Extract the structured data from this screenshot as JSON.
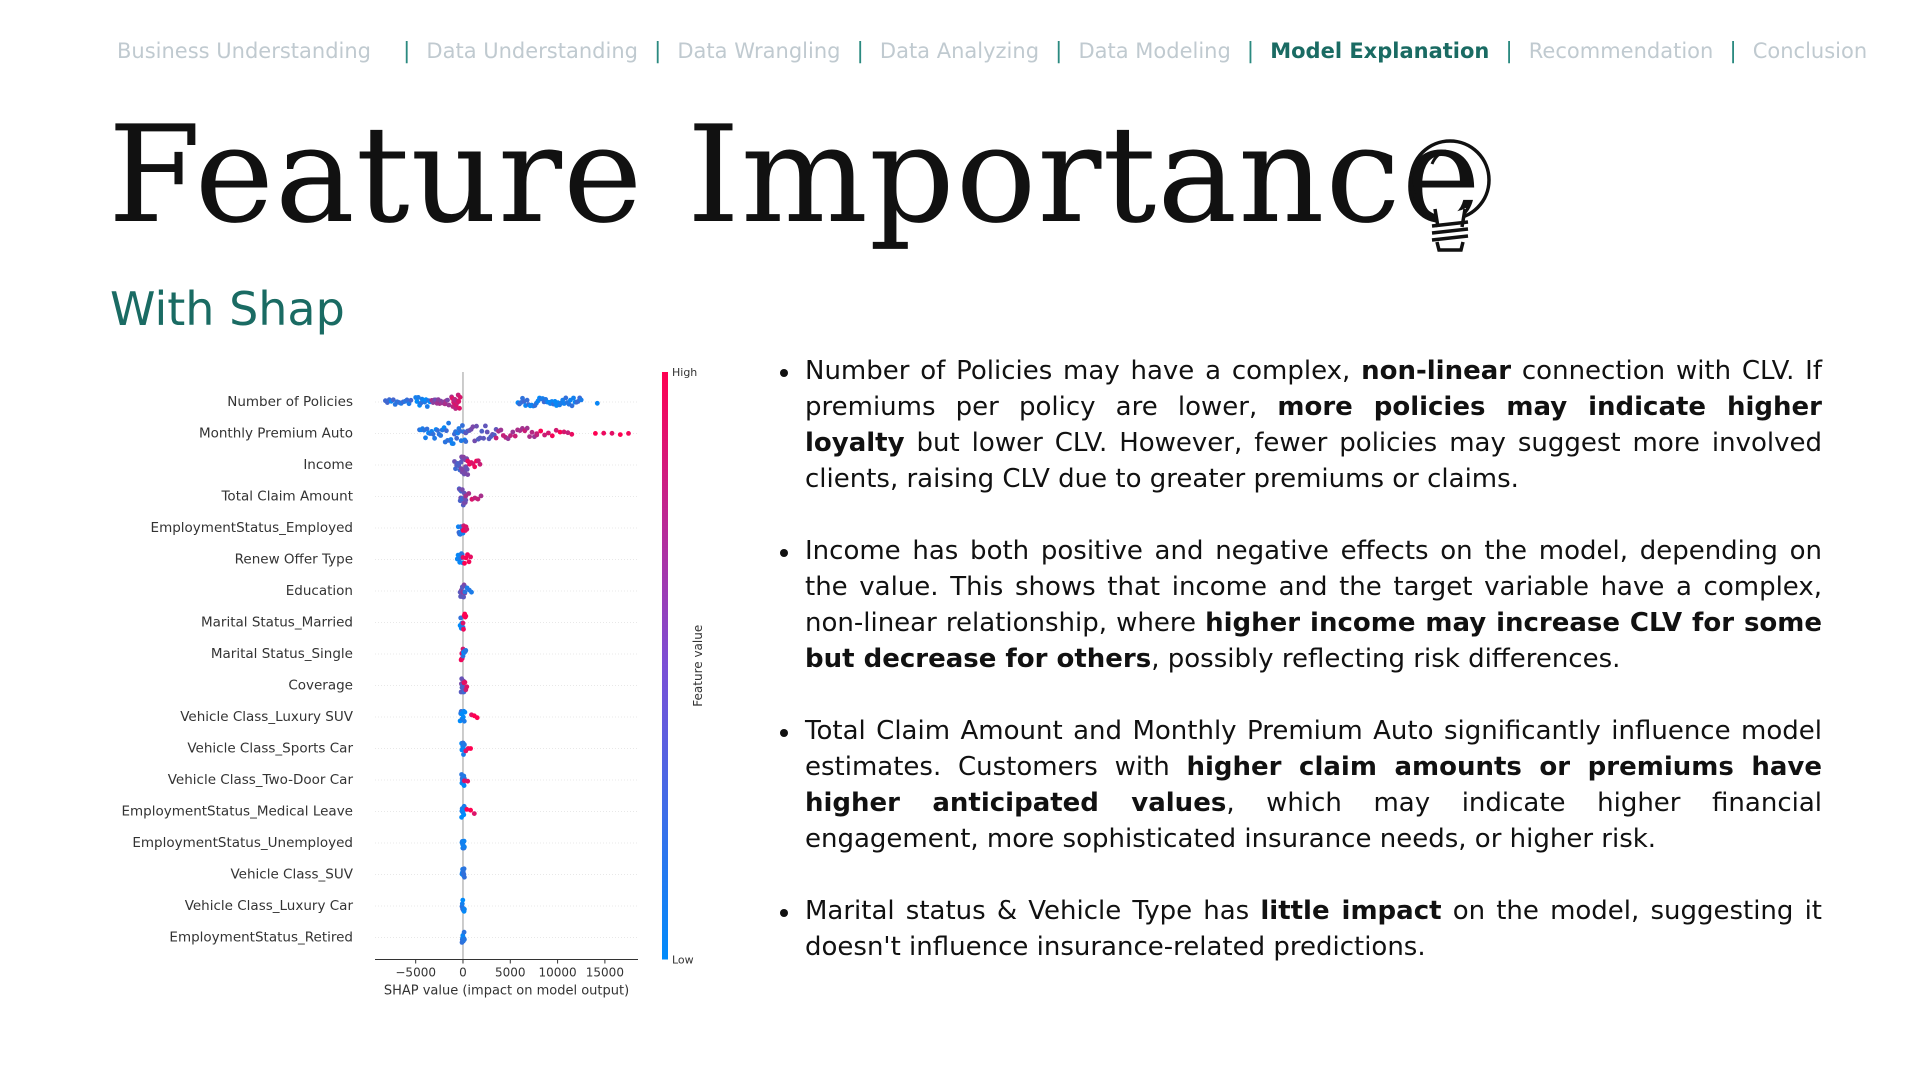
{
  "nav": {
    "items": [
      {
        "label": "Business Understanding",
        "active": false
      },
      {
        "label": "Data Understanding",
        "active": false
      },
      {
        "label": "Data Wrangling",
        "active": false
      },
      {
        "label": "Data Analyzing",
        "active": false
      },
      {
        "label": "Data Modeling",
        "active": false
      },
      {
        "label": "Model Explanation",
        "active": true
      },
      {
        "label": "Recommendation",
        "active": false
      },
      {
        "label": "Conclusion",
        "active": false
      }
    ],
    "separator": "|"
  },
  "title": "Feature Importance",
  "title_icon": "lightbulb-icon",
  "subtitle": "With Shap",
  "colors": {
    "accent": "#1a6b63",
    "nav_inactive": "#c0cad0",
    "shap_low": "#008bfb",
    "shap_high": "#ff0051"
  },
  "chart_data": {
    "type": "scatter",
    "subtype": "shap-beeswarm",
    "features": [
      "Number of Policies",
      "Monthly Premium Auto",
      "Income",
      "Total Claim Amount",
      "EmploymentStatus_Employed",
      "Renew Offer Type",
      "Education",
      "Marital Status_Married",
      "Marital Status_Single",
      "Coverage",
      "Vehicle Class_Luxury SUV",
      "Vehicle Class_Sports Car",
      "Vehicle Class_Two-Door Car",
      "EmploymentStatus_Medical Leave",
      "EmploymentStatus_Unemployed",
      "Vehicle Class_SUV",
      "Vehicle Class_Luxury Car",
      "EmploymentStatus_Retired"
    ],
    "xlabel": "SHAP value (impact on model output)",
    "xticks": [
      -5000,
      0,
      5000,
      10000,
      15000
    ],
    "xlim": [
      -9300,
      18500
    ],
    "colorbar": {
      "label": "Feature value",
      "high_label": "High",
      "low_label": "Low"
    },
    "clusters": [
      [
        {
          "range": [
            -8200,
            -5500
          ],
          "f": 0.15,
          "count": 14,
          "spread": 0.12
        },
        {
          "range": [
            -5000,
            -3500
          ],
          "f": 0.08,
          "count": 12,
          "spread": 0.5
        },
        {
          "range": [
            -3300,
            -1500
          ],
          "f": 0.55,
          "count": 14,
          "spread": 0.2
        },
        {
          "range": [
            -1200,
            -300
          ],
          "f": 0.8,
          "count": 14,
          "spread": 0.8
        },
        {
          "range": [
            5800,
            12500
          ],
          "f": 0.12,
          "count": 42,
          "spread": 0.3
        },
        {
          "range": [
            14000,
            14400
          ],
          "f": 0.1,
          "count": 1,
          "spread": 0
        }
      ],
      [
        {
          "range": [
            -4600,
            -2200
          ],
          "f": 0.1,
          "count": 16,
          "spread": 0.4
        },
        {
          "range": [
            -2000,
            300
          ],
          "f": 0.15,
          "count": 20,
          "spread": 1
        },
        {
          "range": [
            300,
            3500
          ],
          "f": 0.4,
          "count": 18,
          "spread": 0.7
        },
        {
          "range": [
            3500,
            7800
          ],
          "f": 0.68,
          "count": 18,
          "spread": 0.45
        },
        {
          "range": [
            7800,
            11500
          ],
          "f": 0.88,
          "count": 10,
          "spread": 0.2
        },
        {
          "range": [
            14000,
            17500
          ],
          "f": 1,
          "count": 5,
          "spread": 0
        }
      ],
      [
        {
          "range": [
            -900,
            -100
          ],
          "f": 0.3,
          "count": 8,
          "spread": 0.4
        },
        {
          "range": [
            -200,
            500
          ],
          "f": 0.5,
          "count": 14,
          "spread": 1
        },
        {
          "range": [
            500,
            1800
          ],
          "f": 0.9,
          "count": 8,
          "spread": 0.4
        }
      ],
      [
        {
          "range": [
            -400,
            300
          ],
          "f": 0.35,
          "count": 14,
          "spread": 0.8
        },
        {
          "range": [
            300,
            1900
          ],
          "f": 0.75,
          "count": 6,
          "spread": 0.2
        }
      ],
      [
        {
          "range": [
            -500,
            0
          ],
          "f": 0.15,
          "count": 8,
          "spread": 0.6
        },
        {
          "range": [
            0,
            400
          ],
          "f": 0.9,
          "count": 6,
          "spread": 0.5
        }
      ],
      [
        {
          "range": [
            -600,
            0
          ],
          "f": 0.1,
          "count": 8,
          "spread": 0.5
        },
        {
          "range": [
            0,
            800
          ],
          "f": 0.9,
          "count": 6,
          "spread": 0.5
        }
      ],
      [
        {
          "range": [
            -300,
            200
          ],
          "f": 0.45,
          "count": 12,
          "spread": 0.6
        },
        {
          "range": [
            200,
            900
          ],
          "f": 0.1,
          "count": 4,
          "spread": 0.2
        }
      ],
      [
        {
          "range": [
            -300,
            0
          ],
          "f": 0.1,
          "count": 6,
          "spread": 0.5
        },
        {
          "range": [
            0,
            300
          ],
          "f": 0.95,
          "count": 6,
          "spread": 0.8
        }
      ],
      [
        {
          "range": [
            -200,
            0
          ],
          "f": 0.9,
          "count": 6,
          "spread": 0.5
        },
        {
          "range": [
            0,
            300
          ],
          "f": 0.1,
          "count": 6,
          "spread": 0.5
        }
      ],
      [
        {
          "range": [
            -200,
            100
          ],
          "f": 0.35,
          "count": 10,
          "spread": 0.6
        },
        {
          "range": [
            100,
            400
          ],
          "f": 0.9,
          "count": 4,
          "spread": 0.4
        }
      ],
      [
        {
          "range": [
            -300,
            200
          ],
          "f": 0.08,
          "count": 10,
          "spread": 0.5
        },
        {
          "range": [
            900,
            1500
          ],
          "f": 0.95,
          "count": 3,
          "spread": 0.1
        }
      ],
      [
        {
          "range": [
            -150,
            150
          ],
          "f": 0.08,
          "count": 10,
          "spread": 0.5
        },
        {
          "range": [
            300,
            800
          ],
          "f": 0.95,
          "count": 3,
          "spread": 0.1
        }
      ],
      [
        {
          "range": [
            -150,
            150
          ],
          "f": 0.08,
          "count": 10,
          "spread": 0.5
        },
        {
          "range": [
            150,
            500
          ],
          "f": 0.95,
          "count": 2,
          "spread": 0.1
        }
      ],
      [
        {
          "range": [
            -150,
            150
          ],
          "f": 0.08,
          "count": 10,
          "spread": 0.5
        },
        {
          "range": [
            400,
            1200
          ],
          "f": 0.95,
          "count": 3,
          "spread": 0.1
        }
      ],
      [
        {
          "range": [
            -100,
            150
          ],
          "f": 0.1,
          "count": 10,
          "spread": 0.5
        }
      ],
      [
        {
          "range": [
            -100,
            150
          ],
          "f": 0.1,
          "count": 10,
          "spread": 0.5
        }
      ],
      [
        {
          "range": [
            -100,
            150
          ],
          "f": 0.1,
          "count": 10,
          "spread": 0.5
        }
      ],
      [
        {
          "range": [
            -100,
            150
          ],
          "f": 0.1,
          "count": 10,
          "spread": 0.5
        }
      ]
    ]
  },
  "bullets": [
    {
      "segments": [
        {
          "text": "Number of Policies may have a complex, ",
          "bold": false
        },
        {
          "text": "non-linear",
          "bold": true
        },
        {
          "text": " connection with CLV. If premiums per policy are lower, ",
          "bold": false
        },
        {
          "text": "more policies may indicate higher loyalty",
          "bold": true
        },
        {
          "text": " but lower CLV. However, fewer policies may suggest more involved clients, raising CLV due to greater premiums or claims.",
          "bold": false
        }
      ]
    },
    {
      "segments": [
        {
          "text": "Income has both positive and negative effects on the model, depending on the value. This shows that income and the target variable have a complex, non-linear relationship, where ",
          "bold": false
        },
        {
          "text": "higher income may increase CLV for some but decrease for others",
          "bold": true
        },
        {
          "text": ", possibly reflecting risk differences.",
          "bold": false
        }
      ]
    },
    {
      "segments": [
        {
          "text": "Total Claim Amount and Monthly Premium Auto significantly influence model estimates. Customers with ",
          "bold": false
        },
        {
          "text": "higher claim amounts or premiums have higher anticipated values",
          "bold": true
        },
        {
          "text": ", which may indicate higher financial engagement, more sophisticated insurance needs, or higher risk.",
          "bold": false
        }
      ]
    },
    {
      "segments": [
        {
          "text": "Marital status & Vehicle Type has ",
          "bold": false
        },
        {
          "text": "little impact",
          "bold": true
        },
        {
          "text": " on the model, suggesting it doesn't influence insurance-related predictions.",
          "bold": false
        }
      ]
    }
  ]
}
